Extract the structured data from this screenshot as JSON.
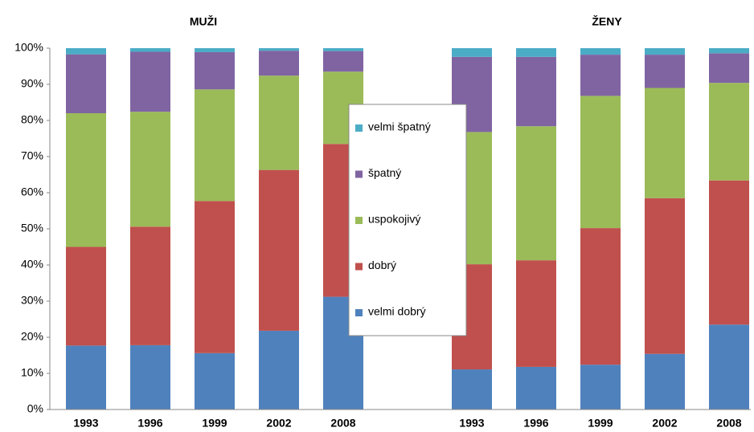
{
  "chart_data": {
    "type": "stacked_bar",
    "group_labels": [
      "MUŽI",
      "ŽENY"
    ],
    "categories": [
      "1993",
      "1996",
      "1999",
      "2002",
      "2008",
      null,
      "1993",
      "1996",
      "1999",
      "2002",
      "2008"
    ],
    "series": [
      {
        "name": "velmi dobrý",
        "color": "#4f81bd",
        "values": [
          17.7,
          17.8,
          15.6,
          21.8,
          31.2,
          null,
          11.1,
          11.8,
          12.4,
          15.4,
          23.5
        ]
      },
      {
        "name": "dobrý",
        "color": "#c0504d",
        "values": [
          27.3,
          32.8,
          42.1,
          44.5,
          42.3,
          null,
          29.1,
          29.5,
          37.8,
          43.1,
          39.9
        ]
      },
      {
        "name": "uspokojivý",
        "color": "#9bbb59",
        "values": [
          37.0,
          31.8,
          30.9,
          26.1,
          20.0,
          null,
          36.6,
          37.1,
          36.6,
          30.5,
          27.0
        ]
      },
      {
        "name": "špatný",
        "color": "#8064a2",
        "values": [
          16.3,
          16.6,
          10.3,
          6.9,
          5.7,
          null,
          20.8,
          19.2,
          11.4,
          9.2,
          8.2
        ]
      },
      {
        "name": "velmi špatný",
        "color": "#4bacc6",
        "values": [
          1.7,
          1.0,
          1.1,
          0.7,
          0.8,
          null,
          2.4,
          2.4,
          1.8,
          1.8,
          1.4
        ]
      }
    ],
    "ylim": [
      0,
      100
    ],
    "yticks": [
      {
        "value": 0,
        "label": "0%"
      },
      {
        "value": 10,
        "label": "10%"
      },
      {
        "value": 20,
        "label": "20%"
      },
      {
        "value": 30,
        "label": "30%"
      },
      {
        "value": 40,
        "label": "40%"
      },
      {
        "value": 50,
        "label": "50%"
      },
      {
        "value": 60,
        "label": "60%"
      },
      {
        "value": 70,
        "label": "70%"
      },
      {
        "value": 80,
        "label": "80%"
      },
      {
        "value": 90,
        "label": "90%"
      },
      {
        "value": 100,
        "label": "100%"
      }
    ],
    "grid": false
  }
}
